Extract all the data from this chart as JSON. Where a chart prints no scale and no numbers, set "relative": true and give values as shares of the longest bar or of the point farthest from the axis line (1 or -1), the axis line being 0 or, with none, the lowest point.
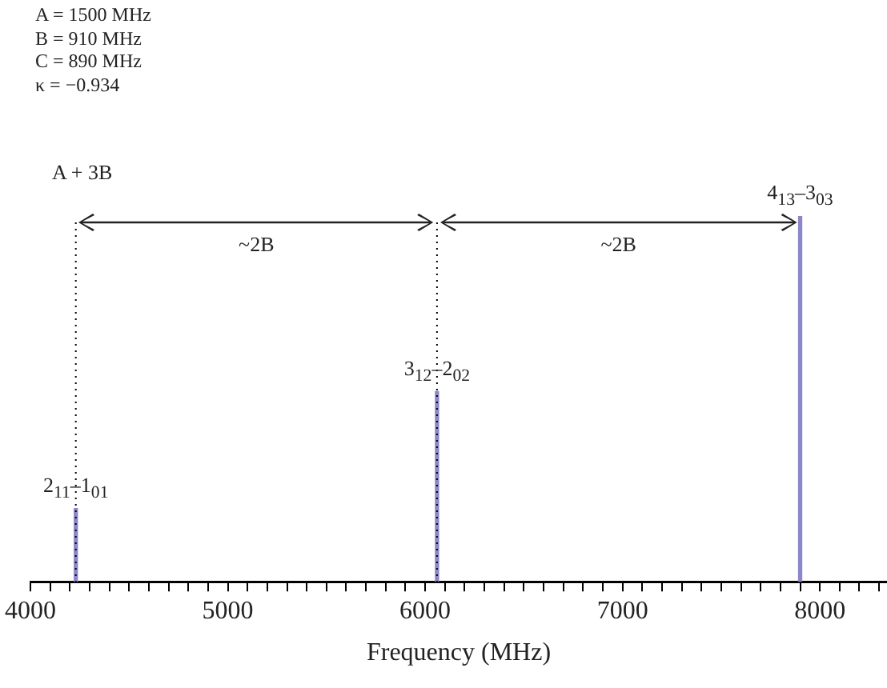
{
  "chart_data": {
    "type": "bar",
    "relative": true,
    "xlabel": "Frequency (MHz)",
    "x": [
      4230,
      6060,
      7900
    ],
    "values": [
      0.2,
      0.52,
      1
    ],
    "color": "#8b87c9",
    "xlim": [
      4000,
      8340
    ],
    "xticks": [
      4000,
      {
        "value": 4100,
        "label": null
      },
      {
        "value": 4200,
        "label": null
      },
      {
        "value": 4300,
        "label": null
      },
      {
        "value": 4400,
        "label": null
      },
      {
        "value": 4500,
        "label": null
      },
      {
        "value": 4600,
        "label": null
      },
      {
        "value": 4700,
        "label": null
      },
      {
        "value": 4800,
        "label": null
      },
      {
        "value": 4900,
        "label": null
      },
      5000,
      {
        "value": 5100,
        "label": null
      },
      {
        "value": 5200,
        "label": null
      },
      {
        "value": 5300,
        "label": null
      },
      {
        "value": 5400,
        "label": null
      },
      {
        "value": 5500,
        "label": null
      },
      {
        "value": 5600,
        "label": null
      },
      {
        "value": 5700,
        "label": null
      },
      {
        "value": 5800,
        "label": null
      },
      {
        "value": 5900,
        "label": null
      },
      6000,
      {
        "value": 6100,
        "label": null
      },
      {
        "value": 6200,
        "label": null
      },
      {
        "value": 6300,
        "label": null
      },
      {
        "value": 6400,
        "label": null
      },
      {
        "value": 6500,
        "label": null
      },
      {
        "value": 6600,
        "label": null
      },
      {
        "value": 6700,
        "label": null
      },
      {
        "value": 6800,
        "label": null
      },
      {
        "value": 6900,
        "label": null
      },
      7000,
      {
        "value": 7100,
        "label": null
      },
      {
        "value": 7200,
        "label": null
      },
      {
        "value": 7300,
        "label": null
      },
      {
        "value": 7400,
        "label": null
      },
      {
        "value": 7500,
        "label": null
      },
      {
        "value": 7600,
        "label": null
      },
      {
        "value": 7700,
        "label": null
      },
      {
        "value": 7800,
        "label": null
      },
      {
        "value": 7900,
        "label": null
      },
      8000,
      {
        "value": 8100,
        "label": null
      },
      {
        "value": 8200,
        "label": null
      },
      {
        "value": 8300,
        "label": null
      }
    ],
    "ref_lines": [
      {
        "axis": "x",
        "value": 4230,
        "label": "A + 3B",
        "line_style": "dotted",
        "color": "#000000"
      },
      {
        "axis": "x",
        "value": 6060,
        "line_style": "dotted",
        "color": "#000000"
      }
    ],
    "annotations": [
      "A = 1500 MHz",
      "B = 910 MHz",
      "C = 890 MHz",
      "κ = −0.934",
      "~2B",
      "~2B",
      {
        "text": "2$_{11}$–1$_{01}$",
        "x": 4230,
        "y": 0.2
      },
      {
        "text": "3$_{12}$–2$_{02}$",
        "x": 6060,
        "y": 0.52
      },
      {
        "text": "4$_{13}$–3$_{03}$",
        "x": 7900,
        "y": 1
      }
    ],
    "grid": false,
    "legend": false
  }
}
